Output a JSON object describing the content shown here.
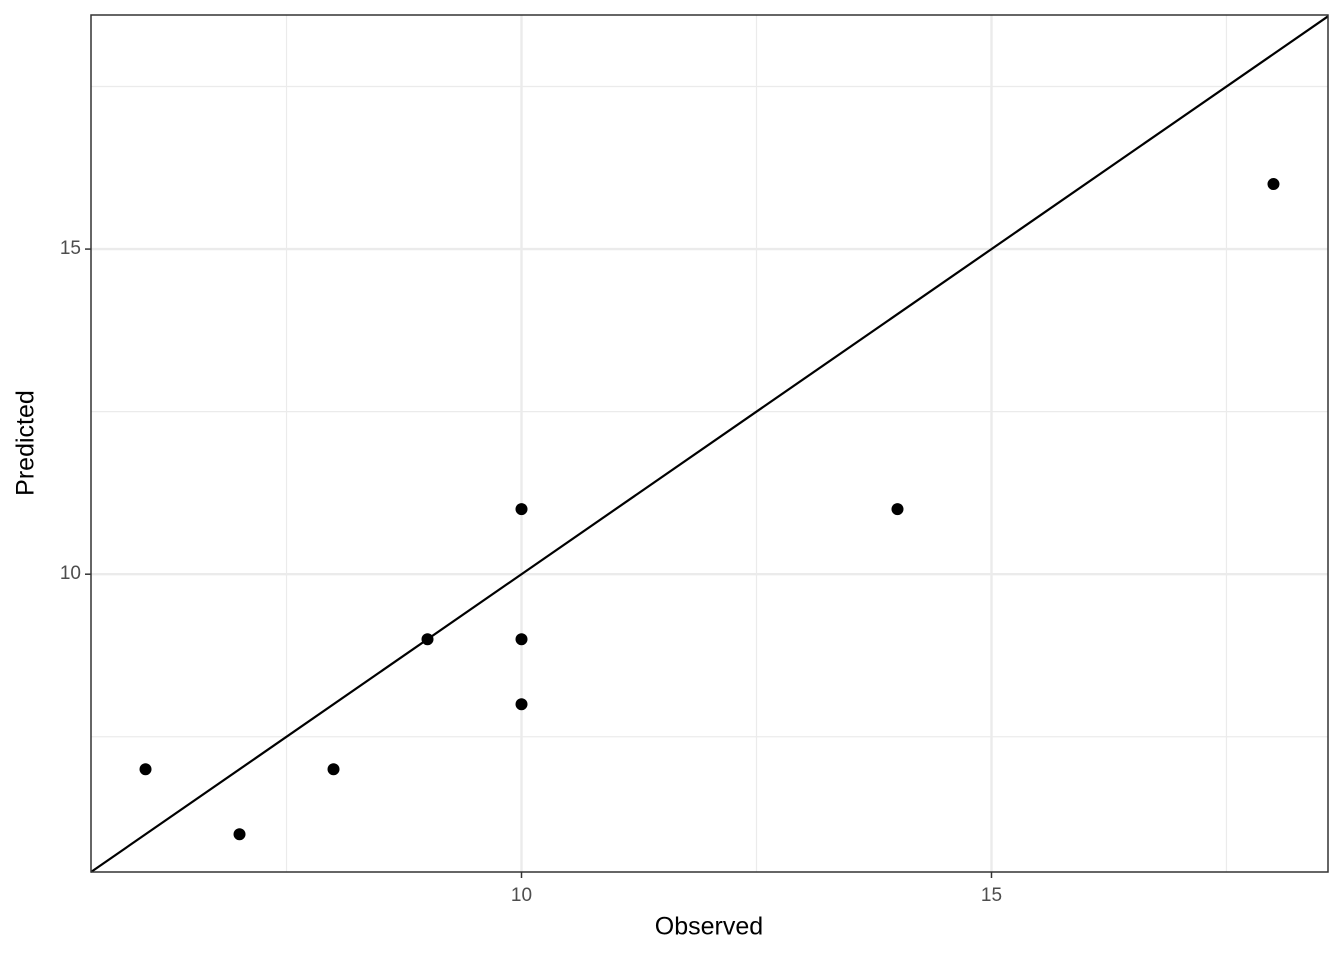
{
  "chart_data": {
    "type": "scatter",
    "x_label": "Observed",
    "y_label": "Predicted",
    "x": [
      6,
      7,
      8,
      9,
      10,
      10,
      10,
      14,
      18
    ],
    "values": [
      7,
      6,
      7,
      9,
      11,
      9,
      8,
      11,
      16
    ],
    "color": "#000000",
    "xlim": [
      5.42,
      18.58
    ],
    "ylim": [
      5.42,
      18.6
    ],
    "xticks": [
      10,
      15
    ],
    "yticks": [
      10,
      15
    ],
    "x_minor_grid": [
      7.5,
      12.5,
      17.5
    ],
    "y_minor_grid": [
      7.5,
      12.5,
      17.5
    ],
    "grid": true,
    "identity_line": true
  }
}
